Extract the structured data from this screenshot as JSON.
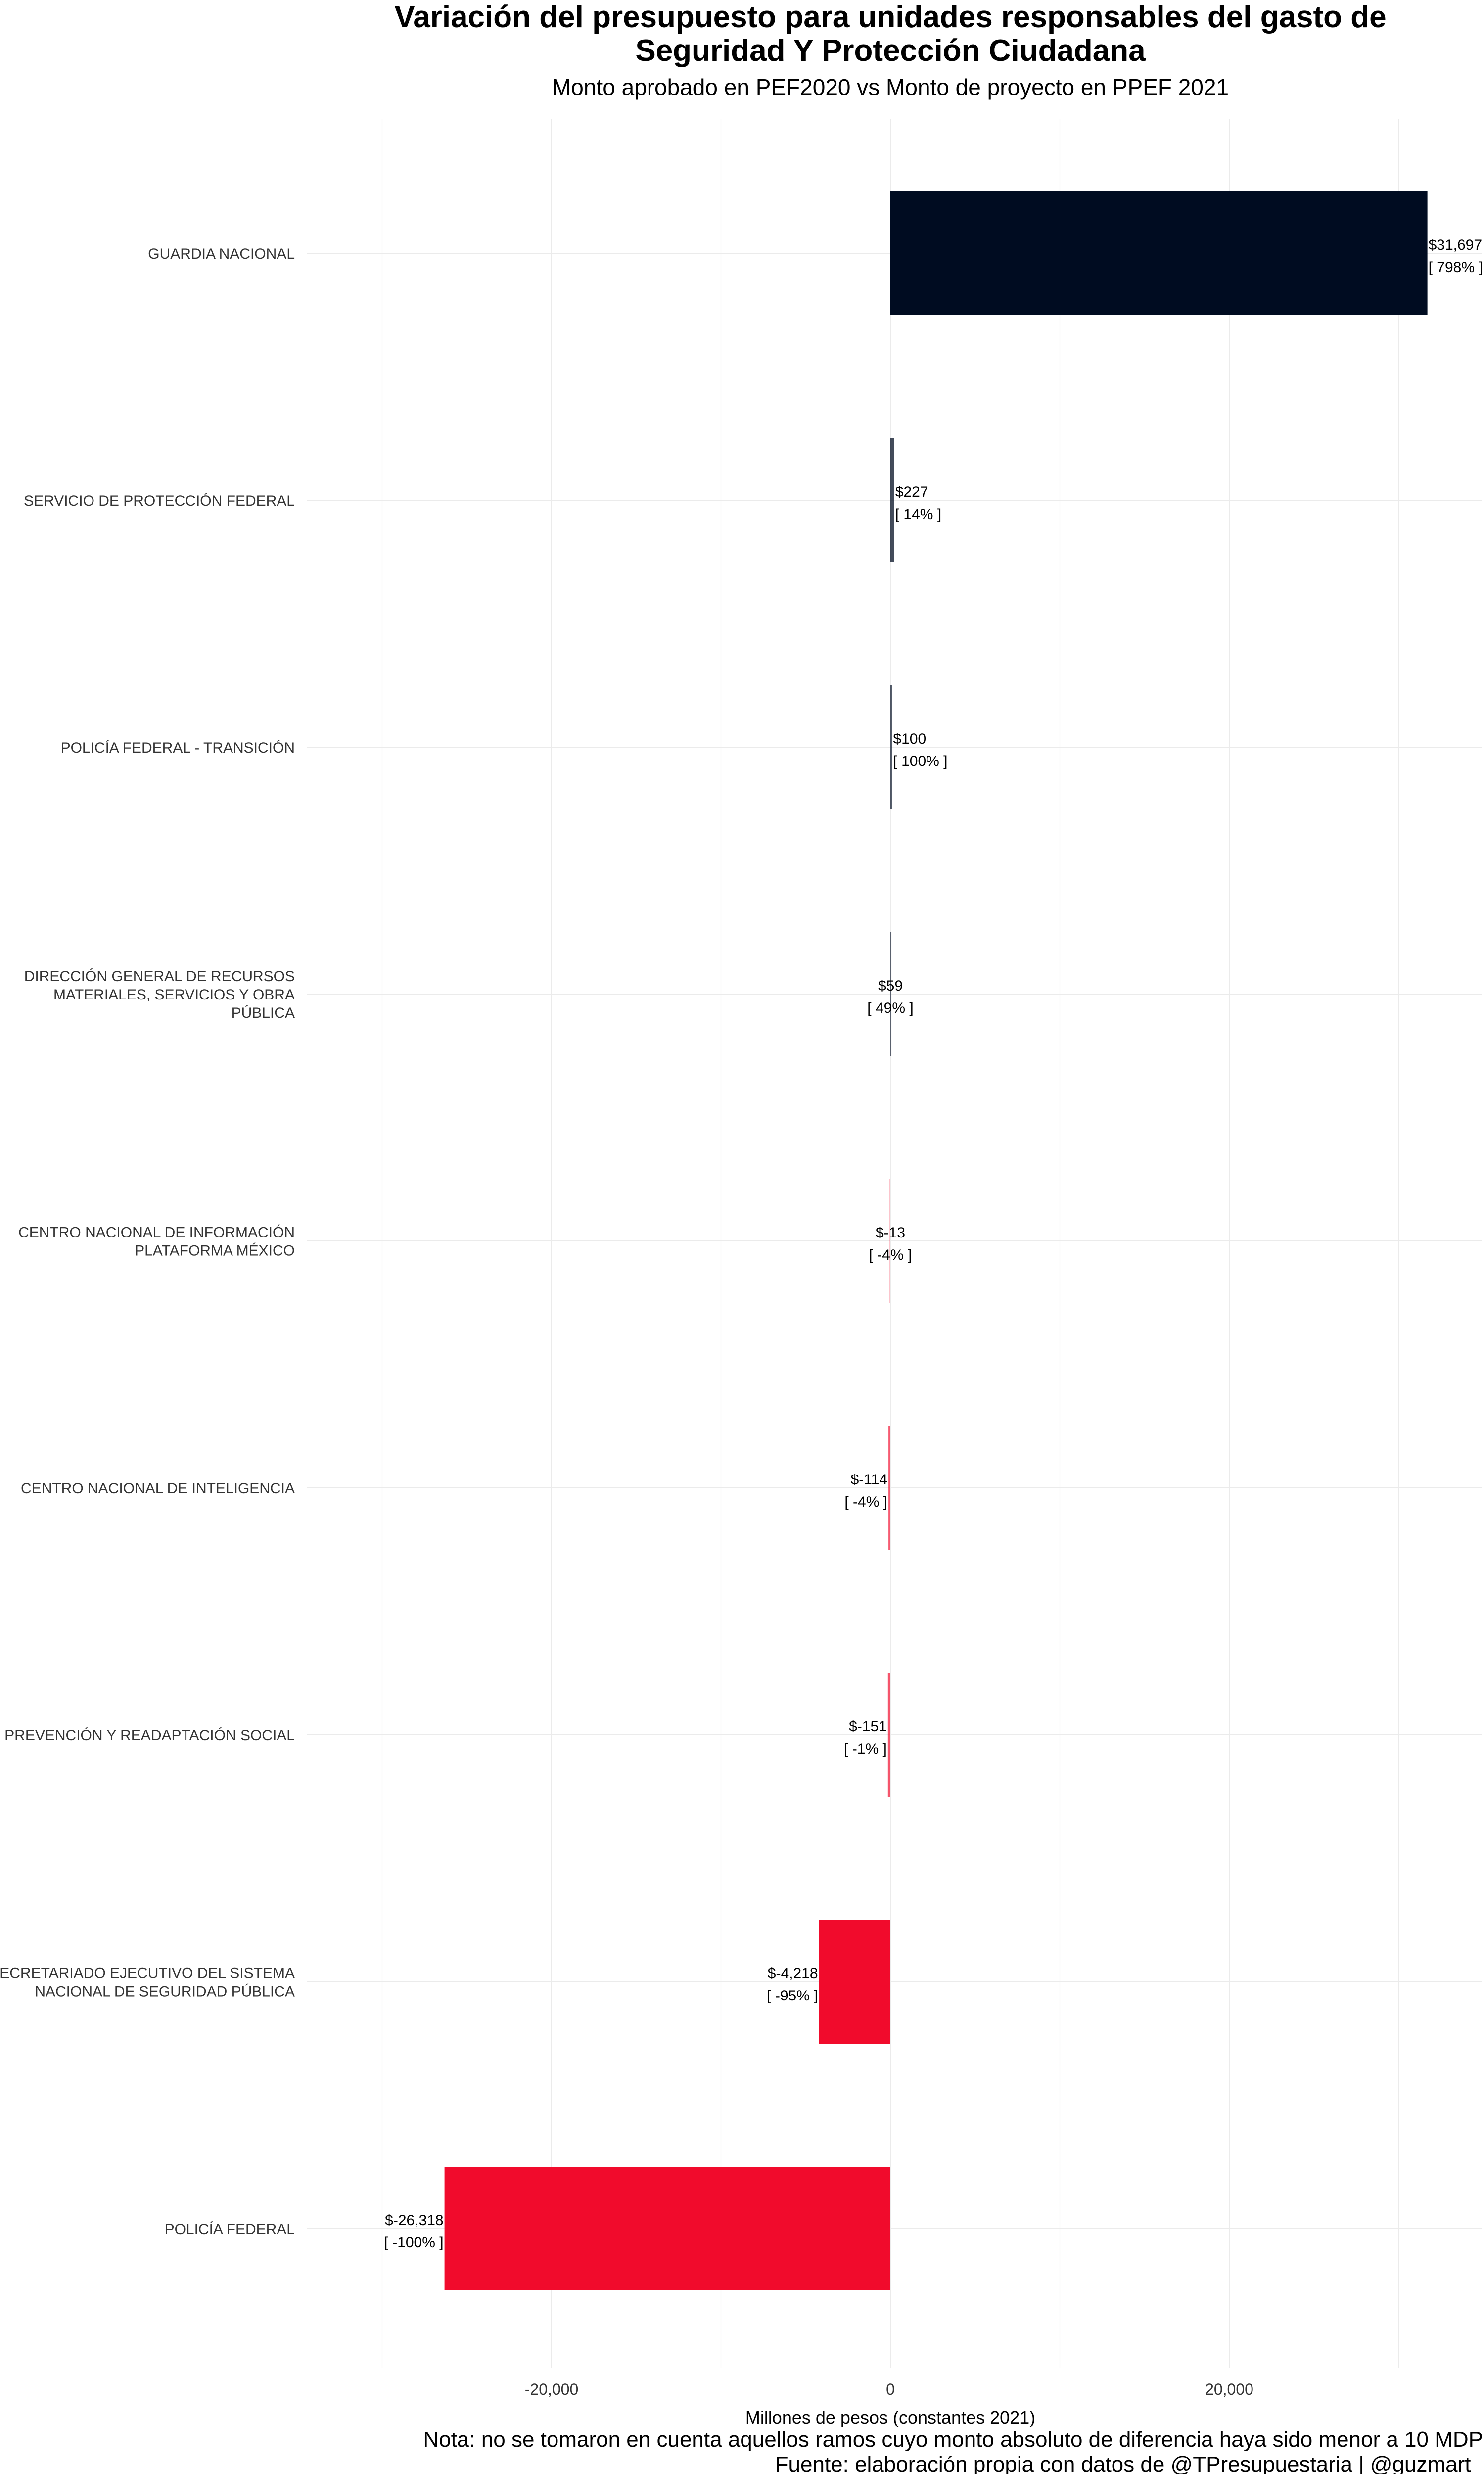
{
  "chart_data": {
    "type": "bar",
    "orientation": "horizontal",
    "title_lines": [
      "Variación del presupuesto para unidades responsables del gasto de",
      "Seguridad Y Protección Ciudadana"
    ],
    "subtitle": "Monto aprobado en PEF2020 vs Monto de proyecto en PPEF 2021",
    "xlabel": "Millones de pesos (constantes 2021)",
    "xlim": [
      -30000,
      35000
    ],
    "xticks": [
      -20000,
      0,
      20000
    ],
    "xtick_labels": [
      "-20,000",
      "0",
      "20,000"
    ],
    "grid": true,
    "categories": [
      [
        "GUARDIA NACIONAL"
      ],
      [
        "SERVICIO DE PROTECCIÓN FEDERAL"
      ],
      [
        "POLICÍA FEDERAL - TRANSICIÓN"
      ],
      [
        "DIRECCIÓN GENERAL DE RECURSOS",
        "MATERIALES, SERVICIOS Y OBRA",
        "PÚBLICA"
      ],
      [
        "CENTRO NACIONAL DE INFORMACIÓN",
        "PLATAFORMA MÉXICO"
      ],
      [
        "CENTRO NACIONAL DE INTELIGENCIA"
      ],
      [
        "PREVENCIÓN Y READAPTACIÓN SOCIAL"
      ],
      [
        "SECRETARIADO EJECUTIVO DEL SISTEMA",
        "NACIONAL DE SEGURIDAD PÚBLICA"
      ],
      [
        "POLICÍA FEDERAL"
      ]
    ],
    "values": [
      31697,
      227,
      100,
      59,
      -13,
      -114,
      -151,
      -4218,
      -26318
    ],
    "value_labels": [
      "$31,697",
      "$227",
      "$100",
      "$59",
      "$-13",
      "$-114",
      "$-151",
      "$-4,218",
      "$-26,318"
    ],
    "pct_labels": [
      "[ 798% ]",
      "[ 14% ]",
      "[ 100% ]",
      "[ 49% ]",
      "[ -4% ]",
      "[ -4% ]",
      "[ -1% ]",
      "[ -95% ]",
      "[ -100% ]"
    ],
    "colors": {
      "positive": "#000c21",
      "negative": "#f10b2c",
      "grid": "#ebebeb",
      "text": "#000000",
      "axis_text": "#333333"
    },
    "notes": [
      "Nota: no se tomaron en cuenta aquellos ramos cuyo monto absoluto de diferencia haya sido menor a 10 MDP",
      "Fuente: elaboración propia con datos de @TPresupuestaria | @guzmart_"
    ]
  }
}
